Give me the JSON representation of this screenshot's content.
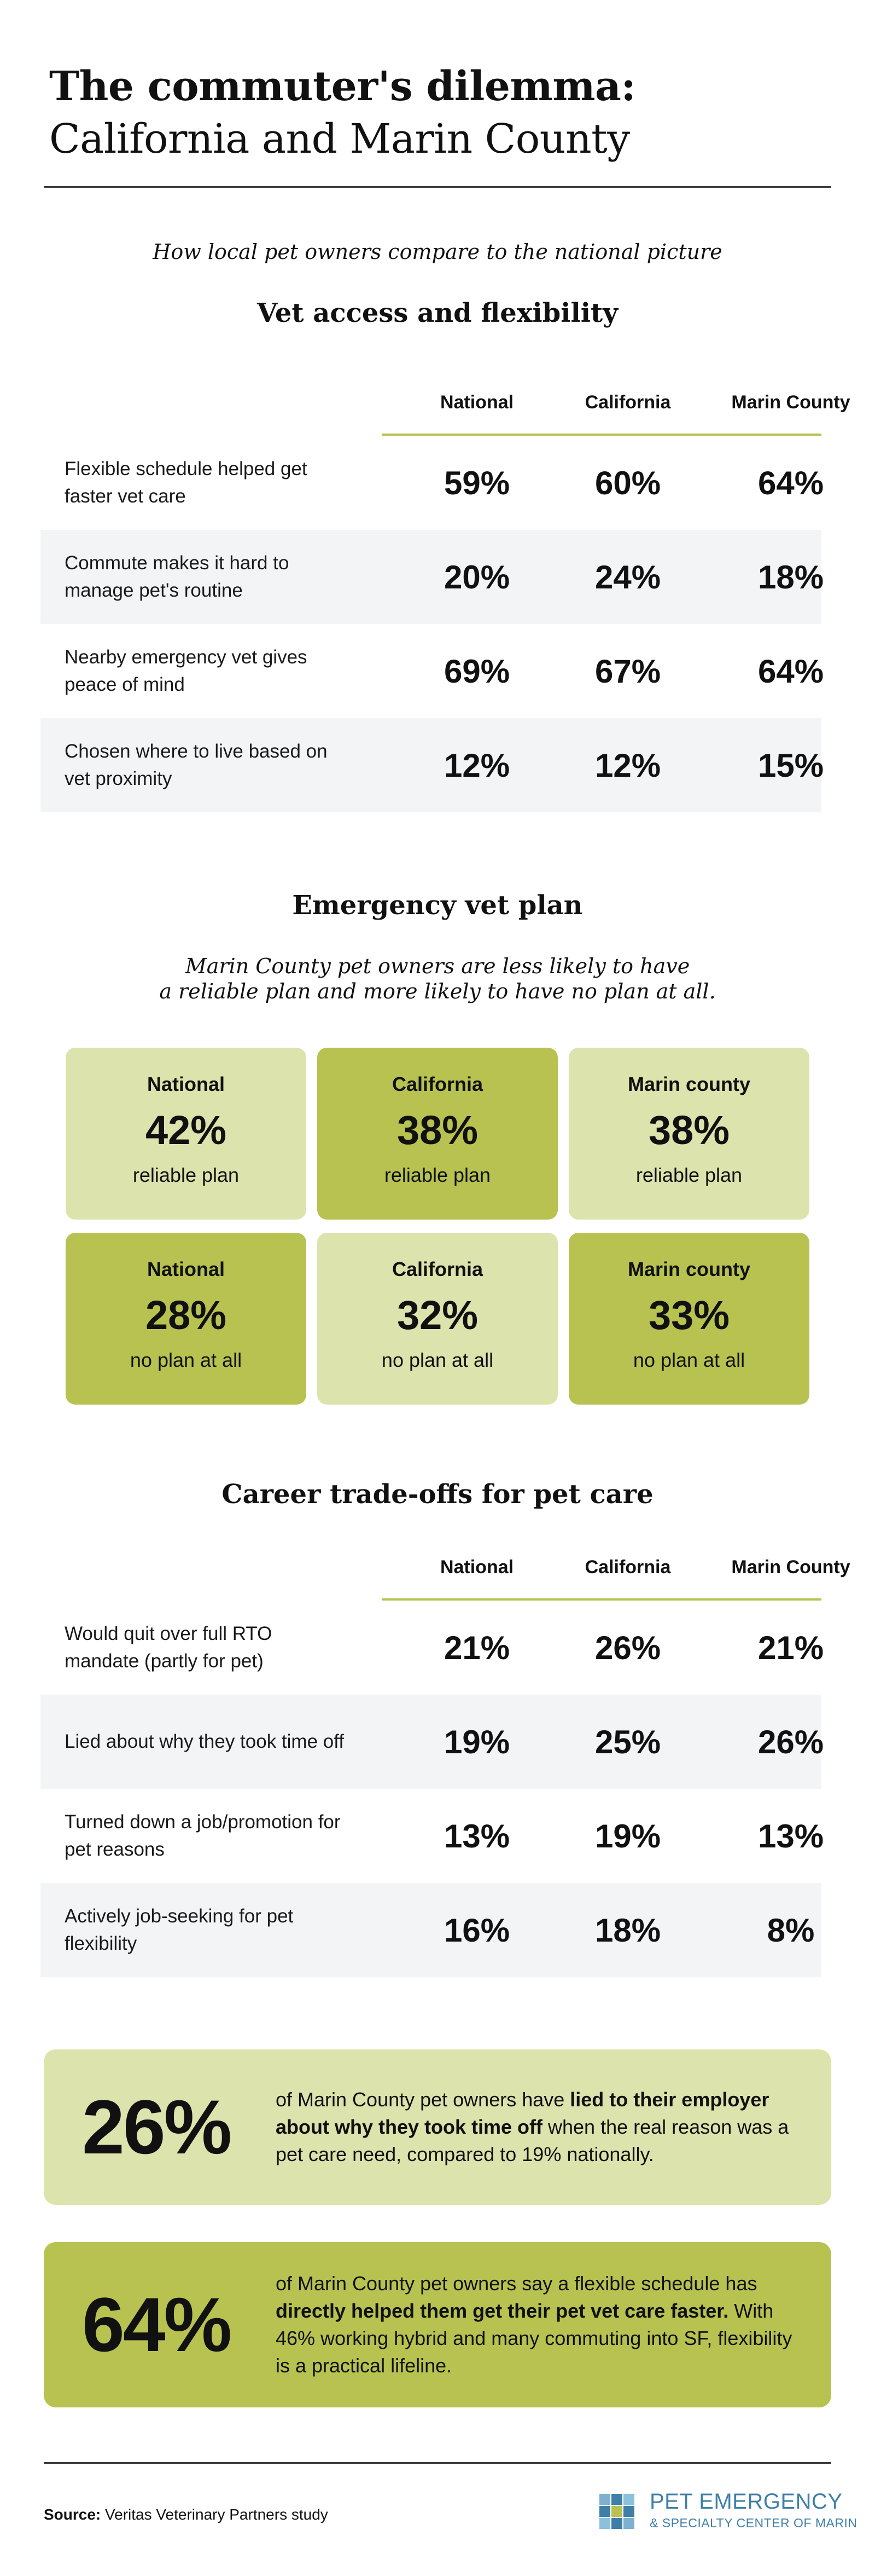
{
  "header": {
    "title_line1": "The commuter's dilemma:",
    "title_line2": "California and Marin County",
    "intro": "How local pet owners compare to the national picture"
  },
  "vet_access": {
    "title": "Vet access and flexibility",
    "columns": [
      "National",
      "California",
      "Marin County"
    ],
    "rows": [
      {
        "label": "Flexible schedule helped get faster vet care",
        "values": [
          "59%",
          "60%",
          "64%"
        ]
      },
      {
        "label": "Commute makes it hard to manage pet's routine",
        "values": [
          "20%",
          "24%",
          "18%"
        ]
      },
      {
        "label": "Nearby emergency vet gives peace of mind",
        "values": [
          "69%",
          "67%",
          "64%"
        ]
      },
      {
        "label": "Chosen where to live based on vet proximity",
        "values": [
          "12%",
          "12%",
          "15%"
        ]
      }
    ]
  },
  "emergency_plan": {
    "title": "Emergency vet plan",
    "subtitle_line1": "Marin County pet owners are less likely to have",
    "subtitle_line2": "a reliable plan and more likely to have no plan at all.",
    "cards": [
      {
        "name": "National",
        "value": "42%",
        "caption": "reliable plan"
      },
      {
        "name": "California",
        "value": "38%",
        "caption": "reliable plan"
      },
      {
        "name": "Marin county",
        "value": "38%",
        "caption": "reliable plan"
      },
      {
        "name": "National",
        "value": "28%",
        "caption": "no plan at all"
      },
      {
        "name": "California",
        "value": "32%",
        "caption": "no plan at all"
      },
      {
        "name": "Marin county",
        "value": "33%",
        "caption": "no plan at all"
      }
    ]
  },
  "career": {
    "title": "Career trade-offs for pet care",
    "columns": [
      "National",
      "California",
      "Marin County"
    ],
    "rows": [
      {
        "label": "Would quit over full RTO mandate (partly for pet)",
        "values": [
          "21%",
          "26%",
          "21%"
        ]
      },
      {
        "label": "Lied about why they took time off",
        "values": [
          "19%",
          "25%",
          "26%"
        ]
      },
      {
        "label": "Turned down a job/promotion for pet reasons",
        "values": [
          "13%",
          "19%",
          "13%"
        ]
      },
      {
        "label": "Actively job-seeking for pet flexibility",
        "values": [
          "16%",
          "18%",
          "8%"
        ]
      }
    ]
  },
  "callouts": [
    {
      "big": "26%",
      "text_pre": "of Marin County pet owners have ",
      "text_bold": "lied to their employer about why they took time off",
      "text_post": " when the real reason was a pet care need, compared to 19% nationally."
    },
    {
      "big": "64%",
      "text_pre": "of Marin County pet owners say a flexible schedule has ",
      "text_bold": "directly helped them get their pet vet care faster.",
      "text_post": " With 46% working hybrid and many commuting into SF, flexibility is a practical lifeline."
    }
  ],
  "footer": {
    "source_label": "Source:",
    "source_text": " Veritas Veterinary Partners study",
    "logo_line1": "PET EMERGENCY",
    "logo_line2": "& SPECIALTY CENTER OF MARIN"
  },
  "colors": {
    "accent_light": "#dce3ac",
    "accent_dark": "#b7c250",
    "row_shade": "#f3f4f6",
    "logo_blue": "#3f7fa7"
  }
}
